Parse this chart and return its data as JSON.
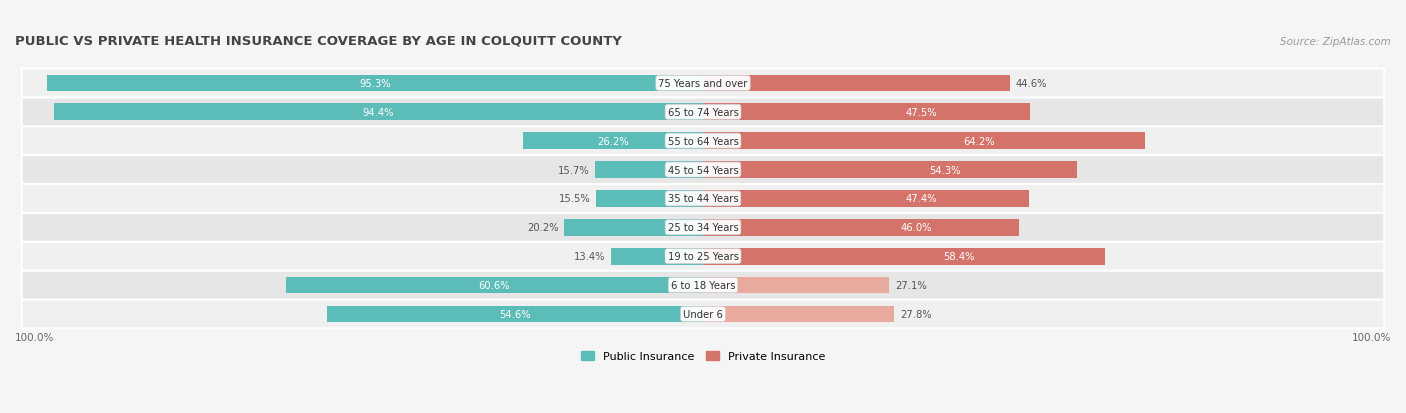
{
  "title": "PUBLIC VS PRIVATE HEALTH INSURANCE COVERAGE BY AGE IN COLQUITT COUNTY",
  "source": "Source: ZipAtlas.com",
  "categories": [
    "Under 6",
    "6 to 18 Years",
    "19 to 25 Years",
    "25 to 34 Years",
    "35 to 44 Years",
    "45 to 54 Years",
    "55 to 64 Years",
    "65 to 74 Years",
    "75 Years and over"
  ],
  "public_values": [
    54.6,
    60.6,
    13.4,
    20.2,
    15.5,
    15.7,
    26.2,
    94.4,
    95.3
  ],
  "private_values": [
    27.8,
    27.1,
    58.4,
    46.0,
    47.4,
    54.3,
    64.2,
    47.5,
    44.6
  ],
  "public_color": "#5bbcb8",
  "private_color_light": "#e8a99e",
  "private_color_dark": "#d4736a",
  "row_bg_odd": "#f0f0f0",
  "row_bg_even": "#e6e6e6",
  "title_color": "#444444",
  "value_color_outside": "#555555",
  "value_color_inside": "#ffffff",
  "legend_public": "Public Insurance",
  "legend_private": "Private Insurance",
  "bar_height": 0.58,
  "max_value": 100.0,
  "figsize": [
    14.06,
    4.14
  ],
  "dpi": 100,
  "inside_threshold_pub": 25,
  "inside_threshold_priv": 45
}
